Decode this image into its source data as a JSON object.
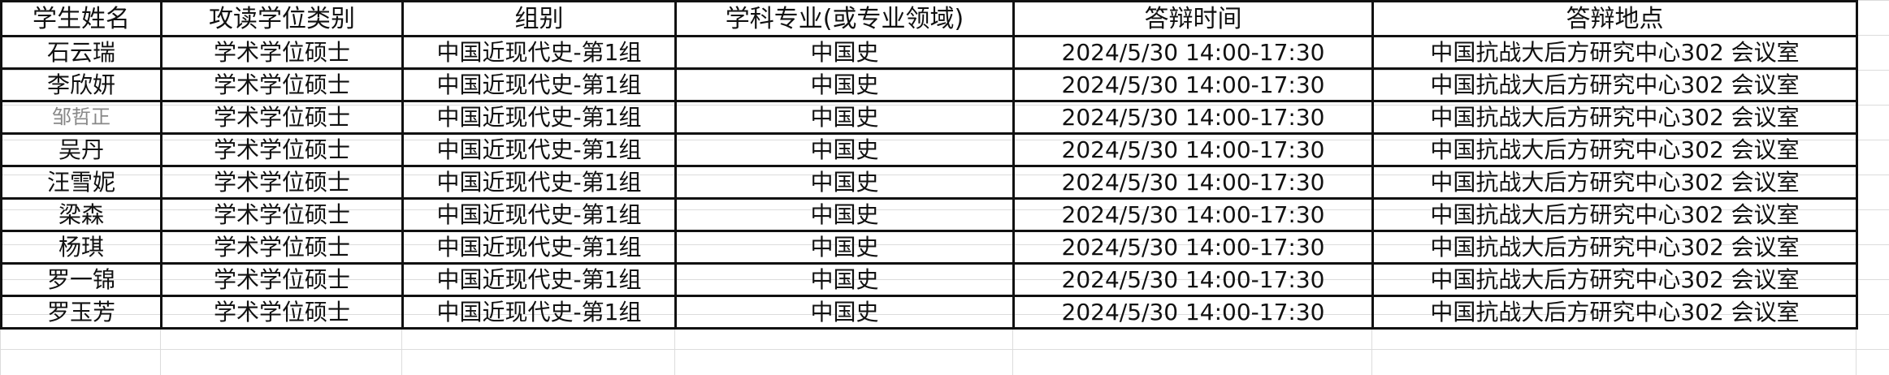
{
  "headers": [
    "学生姓名",
    "攻读学位类别",
    "组别",
    "学科专业(或专业领域)",
    "答辩时间",
    "答辩地点"
  ],
  "rows": [
    [
      "石云瑞",
      "学术学位硕士",
      "中国近现代史-第1组",
      "中国史",
      "2024/5/30 14:00-17:30",
      "中国抗战大后方研究中心302 会议室"
    ],
    [
      "李欣妍",
      "学术学位硕士",
      "中国近现代史-第1组",
      "中国史",
      "2024/5/30 14:00-17:30",
      "中国抗战大后方研究中心302 会议室"
    ],
    [
      "邹哲正",
      "学术学位硕士",
      "中国近现代史-第1组",
      "中国史",
      "2024/5/30 14:00-17:30",
      "中国抗战大后方研究中心302 会议室"
    ],
    [
      "吴丹",
      "学术学位硕士",
      "中国近现代史-第1组",
      "中国史",
      "2024/5/30 14:00-17:30",
      "中国抗战大后方研究中心302 会议室"
    ],
    [
      "汪雪妮",
      "学术学位硕士",
      "中国近现代史-第1组",
      "中国史",
      "2024/5/30 14:00-17:30",
      "中国抗战大后方研究中心302 会议室"
    ],
    [
      "梁森",
      "学术学位硕士",
      "中国近现代史-第1组",
      "中国史",
      "2024/5/30 14:00-17:30",
      "中国抗战大后方研究中心302 会议室"
    ],
    [
      "杨琪",
      "学术学位硕士",
      "中国近现代史-第1组",
      "中国史",
      "2024/5/30 14:00-17:30",
      "中国抗战大后方研究中心302 会议室"
    ],
    [
      "罗一锦",
      "学术学位硕士",
      "中国近现代史-第1组",
      "中国史",
      "2024/5/30 14:00-17:30",
      "中国抗战大后方研究中心302 会议室"
    ],
    [
      "罗玉芳",
      "学术学位硕士",
      "中国近现代史-第1组",
      "中国史",
      "2024/5/30 14:00-17:30",
      "中国抗战大后方研究中心302 会议室"
    ]
  ]
}
